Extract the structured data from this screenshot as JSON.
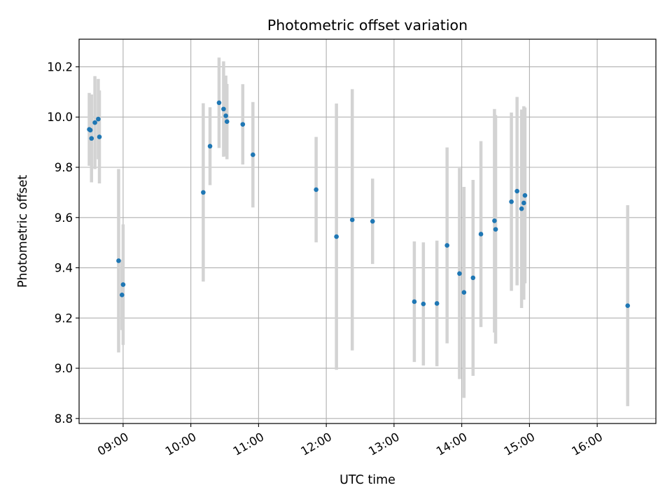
{
  "chart_data": {
    "type": "scatter",
    "title": "Photometric offset variation",
    "xlabel": "UTC time",
    "ylabel": "Photometric offset",
    "x_unit": "hours",
    "xlim": [
      "08:21",
      "16:52"
    ],
    "ylim": [
      8.78,
      10.31
    ],
    "x_ticks": [
      "09:00",
      "10:00",
      "11:00",
      "12:00",
      "13:00",
      "14:00",
      "15:00",
      "16:00"
    ],
    "y_ticks": [
      8.8,
      9.0,
      9.2,
      9.4,
      9.6,
      9.8,
      10.0,
      10.2
    ],
    "grid": true,
    "colors": {
      "points": "#1f77b4",
      "errorbars": "#d3d3d3",
      "grid": "#b0b0b0",
      "axes": "#000000"
    },
    "series": [
      {
        "points": [
          {
            "x": "08:30",
            "y": 9.951,
            "err": 0.145
          },
          {
            "x": "08:31",
            "y": 9.948,
            "err": 0.14
          },
          {
            "x": "08:32",
            "y": 9.915,
            "err": 0.175
          },
          {
            "x": "08:35",
            "y": 9.978,
            "err": 0.185
          },
          {
            "x": "08:38",
            "y": 9.992,
            "err": 0.16
          },
          {
            "x": "08:39",
            "y": 9.921,
            "err": 0.185
          },
          {
            "x": "08:56",
            "y": 9.428,
            "err": 0.365
          },
          {
            "x": "08:59",
            "y": 9.292,
            "err": 0.14
          },
          {
            "x": "09:00",
            "y": 9.333,
            "err": 0.24
          },
          {
            "x": "10:11",
            "y": 9.7,
            "err": 0.355
          },
          {
            "x": "10:17",
            "y": 9.884,
            "err": 0.155
          },
          {
            "x": "10:25",
            "y": 10.057,
            "err": 0.18
          },
          {
            "x": "10:29",
            "y": 10.032,
            "err": 0.19
          },
          {
            "x": "10:31",
            "y": 10.005,
            "err": 0.16
          },
          {
            "x": "10:32",
            "y": 9.982,
            "err": 0.15
          },
          {
            "x": "10:46",
            "y": 9.971,
            "err": 0.16
          },
          {
            "x": "10:55",
            "y": 9.85,
            "err": 0.21
          },
          {
            "x": "11:51",
            "y": 9.711,
            "err": 0.21
          },
          {
            "x": "12:09",
            "y": 9.524,
            "err": 0.53
          },
          {
            "x": "12:23",
            "y": 9.591,
            "err": 0.52
          },
          {
            "x": "12:41",
            "y": 9.585,
            "err": 0.17
          },
          {
            "x": "13:18",
            "y": 9.265,
            "err": 0.24
          },
          {
            "x": "13:26",
            "y": 9.256,
            "err": 0.245
          },
          {
            "x": "13:38",
            "y": 9.258,
            "err": 0.25
          },
          {
            "x": "13:47",
            "y": 9.489,
            "err": 0.39
          },
          {
            "x": "13:58",
            "y": 9.377,
            "err": 0.42
          },
          {
            "x": "14:02",
            "y": 9.302,
            "err": 0.42
          },
          {
            "x": "14:10",
            "y": 9.36,
            "err": 0.39
          },
          {
            "x": "14:17",
            "y": 9.534,
            "err": 0.37
          },
          {
            "x": "14:29",
            "y": 9.587,
            "err": 0.445
          },
          {
            "x": "14:30",
            "y": 9.553,
            "err": 0.455
          },
          {
            "x": "14:44",
            "y": 9.663,
            "err": 0.355
          },
          {
            "x": "14:49",
            "y": 9.705,
            "err": 0.375
          },
          {
            "x": "14:53",
            "y": 9.635,
            "err": 0.395
          },
          {
            "x": "14:55",
            "y": 9.658,
            "err": 0.385
          },
          {
            "x": "14:56",
            "y": 9.688,
            "err": 0.35
          },
          {
            "x": "16:27",
            "y": 9.249,
            "err": 0.4
          }
        ]
      }
    ]
  }
}
